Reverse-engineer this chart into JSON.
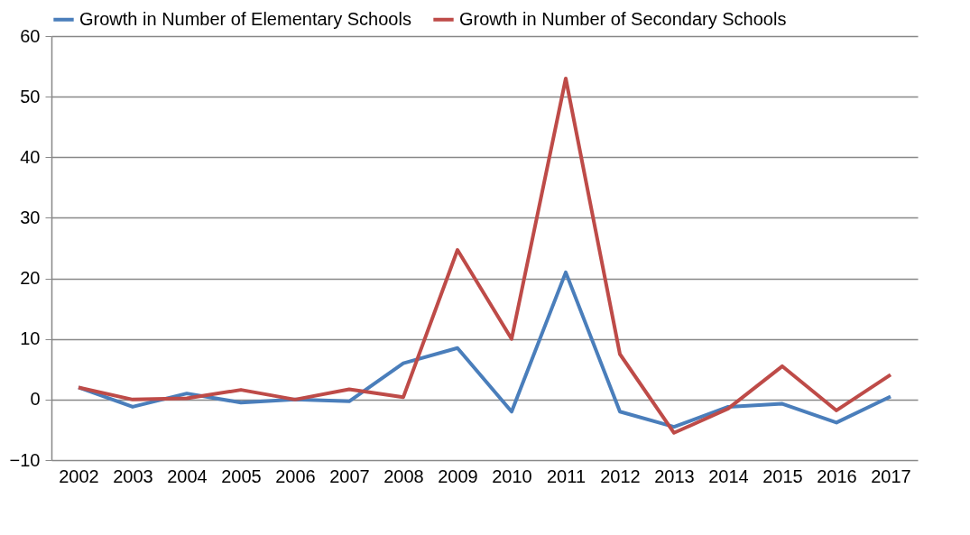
{
  "chart_data": {
    "type": "line",
    "categories": [
      "2002",
      "2003",
      "2004",
      "2005",
      "2006",
      "2007",
      "2008",
      "2009",
      "2010",
      "2011",
      "2012",
      "2013",
      "2014",
      "2015",
      "2016",
      "2017"
    ],
    "series": [
      {
        "name": "Growth in Number of Elementary Schools",
        "color": "#4a7ebb",
        "values": [
          2,
          -1.2,
          1,
          -0.5,
          0,
          -0.3,
          6,
          8.5,
          -2,
          21,
          -2,
          -4.5,
          -1.2,
          -0.7,
          -3.8,
          0.5
        ]
      },
      {
        "name": "Growth in Number of Secondary Schools",
        "color": "#be4b48",
        "values": [
          2,
          0,
          0.2,
          1.6,
          0,
          1.7,
          0.4,
          24.7,
          10,
          53,
          7.5,
          -5.5,
          -1.5,
          5.5,
          -1.8,
          4.1
        ]
      }
    ],
    "ylim": [
      -10,
      60
    ],
    "yticks": [
      -10,
      0,
      10,
      20,
      30,
      40,
      50,
      60
    ],
    "grid": "y",
    "legend": "top",
    "marker": "none",
    "line_style": "solid"
  }
}
